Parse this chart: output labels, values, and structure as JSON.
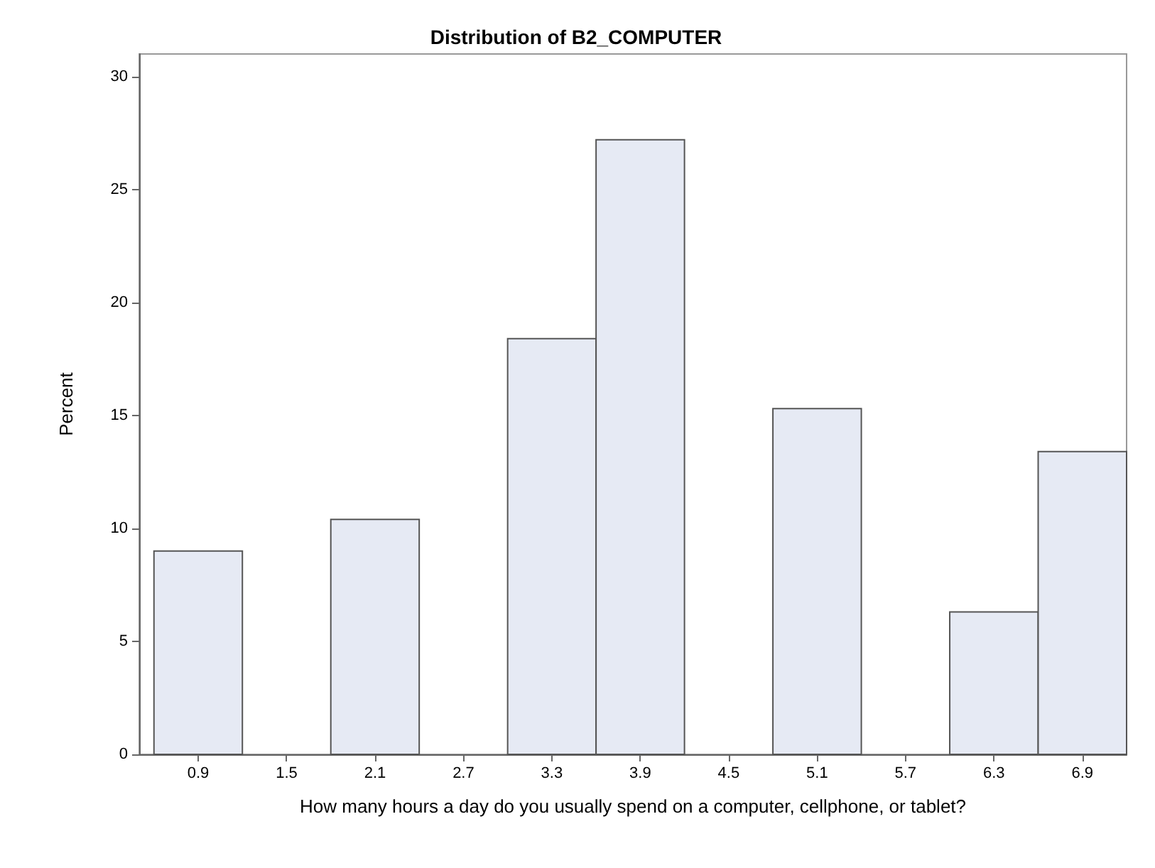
{
  "chart_data": {
    "type": "histogram",
    "title": "Distribution of B2_COMPUTER",
    "xlabel": "How many hours a day do you usually spend on a computer, cellphone, or tablet?",
    "ylabel": "Percent",
    "bins": [
      0.6,
      1.2,
      1.8,
      2.4,
      3.0,
      3.6,
      4.2,
      4.8,
      5.4,
      6.0,
      6.6,
      7.2
    ],
    "values": [
      9.0,
      0,
      10.4,
      0,
      18.4,
      27.2,
      0,
      15.3,
      0,
      6.3,
      13.4
    ],
    "color": "#e6eaf4",
    "xlim": [
      0.5,
      7.2
    ],
    "xticks": [
      0.9,
      1.5,
      2.1,
      2.7,
      3.3,
      3.9,
      4.5,
      5.1,
      5.7,
      6.3,
      6.9
    ],
    "ylim": [
      0,
      31
    ],
    "yticks": [
      0,
      5,
      10,
      15,
      20,
      25,
      30
    ],
    "grid": false
  }
}
